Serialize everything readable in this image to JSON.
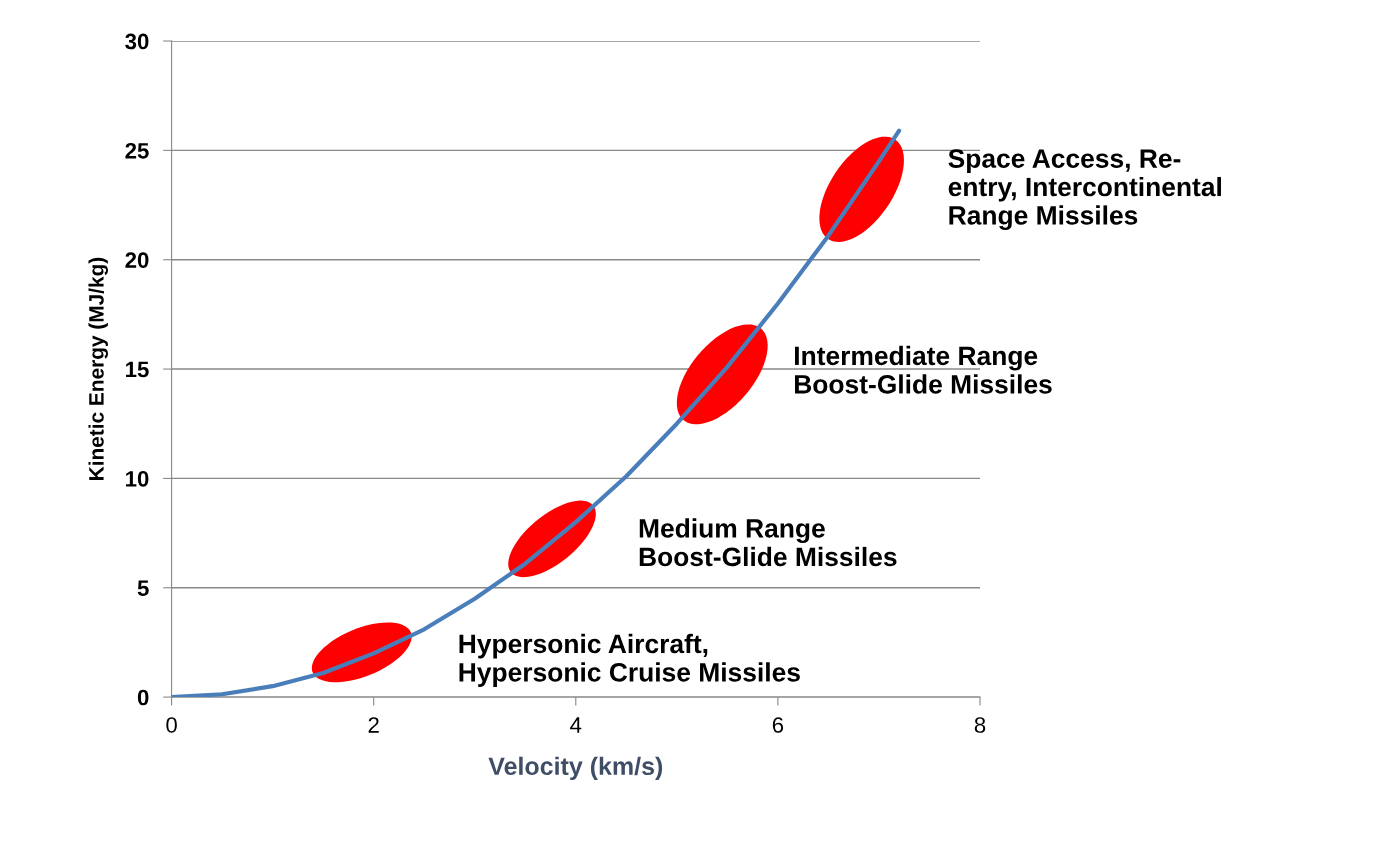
{
  "chart_data": {
    "type": "line",
    "xlabel": "Velocity (km/s)",
    "ylabel": "Kinetic Energy (MJ/kg)",
    "x": [
      0,
      0.5,
      1,
      1.5,
      2,
      2.5,
      3,
      3.5,
      4,
      4.5,
      5,
      5.5,
      6,
      6.5,
      7,
      7.2
    ],
    "series": [
      {
        "color": "#4a7ebb",
        "values": [
          0,
          0.13,
          0.5,
          1.1,
          2,
          3.1,
          4.5,
          6.1,
          8,
          10.1,
          12.5,
          15.1,
          18,
          21.1,
          24.5,
          25.9
        ]
      }
    ],
    "xlim": [
      0,
      8
    ],
    "xticks": [
      0,
      2,
      4,
      6,
      8
    ],
    "ylim": [
      0,
      30
    ],
    "yticks": [
      0,
      5,
      10,
      15,
      20,
      25,
      30
    ],
    "grid": "y",
    "annotations": [
      "Hypersonic Aircraft,\nHypersonic Cruise Missiles",
      "Medium Range\nBoost-Glide Missiles",
      "Intermediate Range\nBoost-Glide Missiles",
      "Space Access, Re-\nentry, Intercontinental\nRange Missiles"
    ]
  }
}
